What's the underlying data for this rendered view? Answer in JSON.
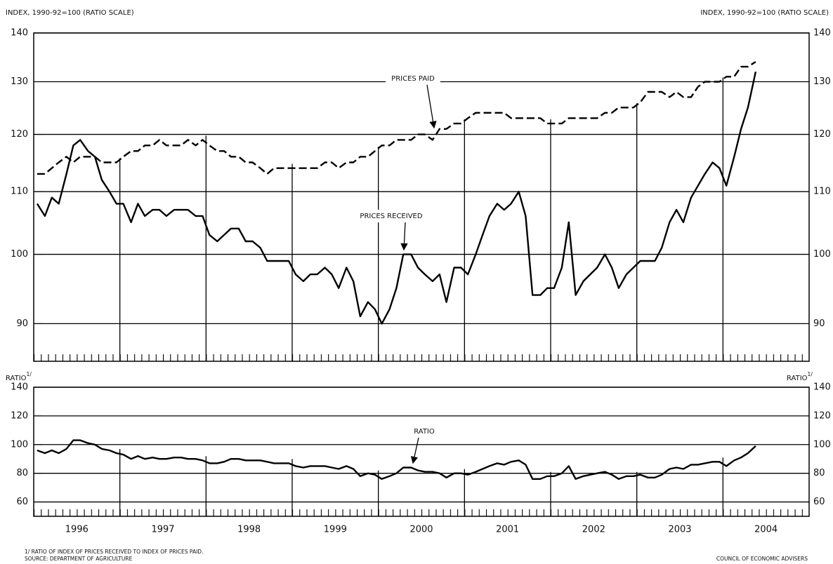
{
  "chart_data": [
    {
      "type": "line",
      "yscale": "log",
      "grid": true,
      "ylabel": "INDEX, 1990-92=100 (RATIO SCALE)",
      "xlim": [
        1996,
        2005
      ],
      "ylim": [
        85,
        140
      ],
      "yticks": [
        90,
        100,
        110,
        120,
        130,
        140
      ],
      "x": [
        1996.04,
        1996.13,
        1996.21,
        1996.29,
        1996.38,
        1996.46,
        1996.54,
        1996.63,
        1996.71,
        1996.79,
        1996.88,
        1996.96,
        1997.04,
        1997.13,
        1997.21,
        1997.29,
        1997.38,
        1997.46,
        1997.54,
        1997.63,
        1997.71,
        1997.79,
        1997.88,
        1997.96,
        1998.04,
        1998.13,
        1998.21,
        1998.29,
        1998.38,
        1998.46,
        1998.54,
        1998.63,
        1998.71,
        1998.79,
        1998.88,
        1998.96,
        1999.04,
        1999.13,
        1999.21,
        1999.29,
        1999.38,
        1999.46,
        1999.54,
        1999.63,
        1999.71,
        1999.79,
        1999.88,
        1999.96,
        2000.04,
        2000.13,
        2000.21,
        2000.29,
        2000.38,
        2000.46,
        2000.54,
        2000.63,
        2000.71,
        2000.79,
        2000.88,
        2000.96,
        2001.04,
        2001.13,
        2001.21,
        2001.29,
        2001.38,
        2001.46,
        2001.54,
        2001.63,
        2001.71,
        2001.79,
        2001.88,
        2001.96,
        2002.04,
        2002.13,
        2002.21,
        2002.29,
        2002.38,
        2002.46,
        2002.54,
        2002.63,
        2002.71,
        2002.79,
        2002.88,
        2002.96,
        2003.04,
        2003.13,
        2003.21,
        2003.29,
        2003.38,
        2003.46,
        2003.54,
        2003.63,
        2003.71,
        2003.79,
        2003.88,
        2003.96,
        2004.04,
        2004.13,
        2004.21,
        2004.29,
        2004.38
      ],
      "series": [
        {
          "name": "PRICES PAID",
          "color": "#000000",
          "dashed": true,
          "values": [
            113,
            113,
            114,
            115,
            116,
            115,
            116,
            116,
            116,
            115,
            115,
            115,
            116,
            117,
            117,
            118,
            118,
            119,
            118,
            118,
            118,
            119,
            118,
            119,
            118,
            117,
            117,
            116,
            116,
            115,
            115,
            114,
            113,
            114,
            114,
            114,
            114,
            114,
            114,
            114,
            115,
            115,
            114,
            115,
            115,
            116,
            116,
            117,
            118,
            118,
            119,
            119,
            119,
            120,
            120,
            119,
            121,
            121,
            122,
            122,
            123,
            124,
            124,
            124,
            124,
            124,
            123,
            123,
            123,
            123,
            123,
            122,
            122,
            122,
            123,
            123,
            123,
            123,
            123,
            124,
            124,
            125,
            125,
            125,
            126,
            128,
            128,
            128,
            127,
            128,
            127,
            127,
            129,
            130,
            130,
            130,
            131,
            131,
            133,
            133,
            134
          ]
        },
        {
          "name": "PRICES RECEIVED",
          "color": "#000000",
          "dashed": false,
          "values": [
            108,
            106,
            109,
            108,
            113,
            118,
            119,
            117,
            116,
            112,
            110,
            108,
            108,
            105,
            108,
            106,
            107,
            107,
            106,
            107,
            107,
            107,
            106,
            106,
            103,
            102,
            103,
            104,
            104,
            102,
            102,
            101,
            99,
            99,
            99,
            99,
            97,
            96,
            97,
            97,
            98,
            97,
            95,
            98,
            96,
            91,
            93,
            92,
            90,
            92,
            95,
            100,
            100,
            98,
            97,
            96,
            97,
            93,
            98,
            98,
            97,
            100,
            103,
            106,
            108,
            107,
            108,
            110,
            106,
            94,
            94,
            95,
            95,
            98,
            105,
            94,
            96,
            97,
            98,
            100,
            98,
            95,
            97,
            98,
            99,
            99,
            99,
            101,
            105,
            107,
            105,
            109,
            111,
            113,
            115,
            114,
            111,
            116,
            121,
            125,
            132
          ]
        }
      ]
    },
    {
      "type": "line",
      "grid": true,
      "ylabel": "RATIO",
      "ylabel_note": "1/",
      "xlim": [
        1996,
        2005
      ],
      "ylim": [
        50,
        140
      ],
      "yticks": [
        60,
        80,
        100,
        120,
        140
      ],
      "xticks": [
        {
          "value": 1996.5,
          "label": "1996"
        },
        {
          "value": 1997.5,
          "label": "1997"
        },
        {
          "value": 1998.5,
          "label": "1998"
        },
        {
          "value": 1999.5,
          "label": "1999"
        },
        {
          "value": 2000.5,
          "label": "2000"
        },
        {
          "value": 2001.5,
          "label": "2001"
        },
        {
          "value": 2002.5,
          "label": "2002"
        },
        {
          "value": 2003.5,
          "label": "2003"
        },
        {
          "value": 2004.5,
          "label": "2004"
        }
      ],
      "x": [
        1996.04,
        1996.13,
        1996.21,
        1996.29,
        1996.38,
        1996.46,
        1996.54,
        1996.63,
        1996.71,
        1996.79,
        1996.88,
        1996.96,
        1997.04,
        1997.13,
        1997.21,
        1997.29,
        1997.38,
        1997.46,
        1997.54,
        1997.63,
        1997.71,
        1997.79,
        1997.88,
        1997.96,
        1998.04,
        1998.13,
        1998.21,
        1998.29,
        1998.38,
        1998.46,
        1998.54,
        1998.63,
        1998.71,
        1998.79,
        1998.88,
        1998.96,
        1999.04,
        1999.13,
        1999.21,
        1999.29,
        1999.38,
        1999.46,
        1999.54,
        1999.63,
        1999.71,
        1999.79,
        1999.88,
        1999.96,
        2000.04,
        2000.13,
        2000.21,
        2000.29,
        2000.38,
        2000.46,
        2000.54,
        2000.63,
        2000.71,
        2000.79,
        2000.88,
        2000.96,
        2001.04,
        2001.13,
        2001.21,
        2001.29,
        2001.38,
        2001.46,
        2001.54,
        2001.63,
        2001.71,
        2001.79,
        2001.88,
        2001.96,
        2002.04,
        2002.13,
        2002.21,
        2002.29,
        2002.38,
        2002.46,
        2002.54,
        2002.63,
        2002.71,
        2002.79,
        2002.88,
        2002.96,
        2003.04,
        2003.13,
        2003.21,
        2003.29,
        2003.38,
        2003.46,
        2003.54,
        2003.63,
        2003.71,
        2003.79,
        2003.88,
        2003.96,
        2004.04,
        2004.13,
        2004.21,
        2004.29,
        2004.38
      ],
      "series": [
        {
          "name": "RATIO",
          "color": "#000000",
          "dashed": false,
          "values": [
            96,
            94,
            96,
            94,
            97,
            103,
            103,
            101,
            100,
            97,
            96,
            94,
            93,
            90,
            92,
            90,
            91,
            90,
            90,
            91,
            91,
            90,
            90,
            89,
            87,
            87,
            88,
            90,
            90,
            89,
            89,
            89,
            88,
            87,
            87,
            87,
            85,
            84,
            85,
            85,
            85,
            84,
            83,
            85,
            83,
            78,
            80,
            79,
            76,
            78,
            80,
            84,
            84,
            82,
            81,
            81,
            80,
            77,
            80,
            80,
            79,
            81,
            83,
            85,
            87,
            86,
            88,
            89,
            86,
            76,
            76,
            78,
            78,
            80,
            85,
            76,
            78,
            79,
            80,
            81,
            79,
            76,
            78,
            78,
            79,
            77,
            77,
            79,
            83,
            84,
            83,
            86,
            86,
            87,
            88,
            88,
            85,
            89,
            91,
            94,
            99
          ]
        }
      ],
      "footnote": "1/ RATIO OF INDEX OF PRICES RECEIVED TO INDEX OF PRICES PAID.",
      "source": "SOURCE: DEPARTMENT OF AGRICULTURE",
      "credit": "COUNCIL OF ECONOMIC ADVISERS"
    }
  ]
}
